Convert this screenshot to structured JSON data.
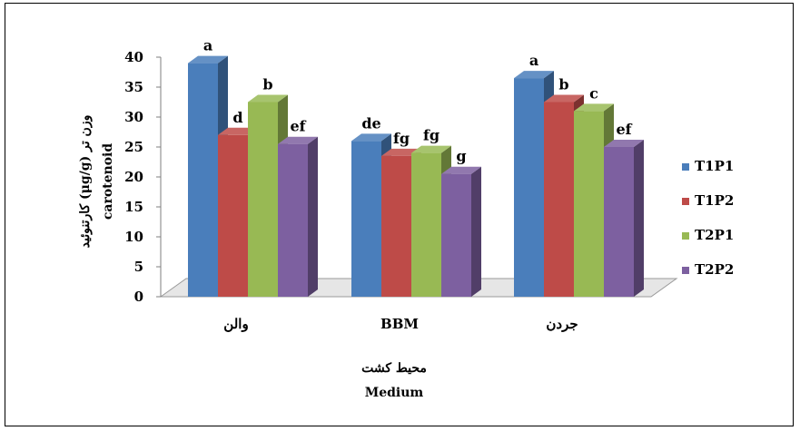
{
  "chart_data": {
    "type": "bar",
    "categories": [
      "والن",
      "BBM",
      "جردن"
    ],
    "series": [
      {
        "name": "T1P1",
        "color": "#4a7ebb",
        "values": [
          39,
          26,
          36.5
        ],
        "labels": [
          "a",
          "de",
          "a"
        ]
      },
      {
        "name": "T1P2",
        "color": "#be4b48",
        "values": [
          27,
          23.5,
          32.5
        ],
        "labels": [
          "d",
          "fg",
          "b"
        ]
      },
      {
        "name": "T2P1",
        "color": "#98b954",
        "values": [
          32.5,
          24,
          31
        ],
        "labels": [
          "b",
          "fg",
          "c"
        ]
      },
      {
        "name": "T2P2",
        "color": "#7d60a0",
        "values": [
          25.5,
          20.5,
          25
        ],
        "labels": [
          "ef",
          "g",
          "ef"
        ]
      }
    ],
    "yticks": [
      0,
      5,
      10,
      15,
      20,
      25,
      30,
      35,
      40
    ],
    "ylim": [
      0,
      40
    ],
    "ylabel_line1": "کارتنوئید (μg/g) وزن تر",
    "ylabel_line2": "carotenoid",
    "xlabel_line1": "محیط کشت",
    "xlabel_line2": "Medium",
    "legend_position": "right",
    "grid": false
  }
}
